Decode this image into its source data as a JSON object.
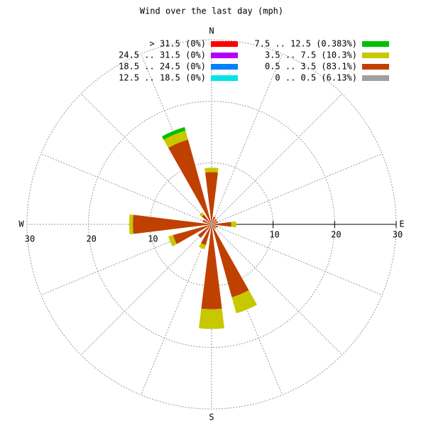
{
  "chart_data": {
    "type": "windrose",
    "title": "Wind over the last day (mph)",
    "categories": [
      "N",
      null,
      null,
      null,
      "E",
      null,
      null,
      null,
      "S",
      null,
      null,
      null,
      "W",
      null,
      null,
      null
    ],
    "rlim": [
      0,
      30
    ],
    "rticks": [
      10,
      20,
      30
    ],
    "series": [
      {
        "name": "0 .. 0.5 (6.13%)",
        "color": "#a0a0a0",
        "values": [
          0.3,
          0.3,
          0.3,
          0.3,
          0.3,
          0.3,
          0.3,
          0.3,
          0.3,
          0.3,
          0.3,
          0.3,
          0.3,
          0.3,
          0.3,
          0.3
        ]
      },
      {
        "name": "0.5 .. 3.5 (83.1%)",
        "color": "#c04000",
        "values": [
          8.2,
          1.0,
          0.8,
          0.8,
          2.9,
          0.8,
          0.6,
          12.0,
          13.5,
          3.2,
          2.5,
          6.2,
          12.5,
          1.2,
          1.7,
          14.0
        ]
      },
      {
        "name": "3.5 .. 7.5 (10.3%)",
        "color": "#c8c800",
        "values": [
          0.7,
          0,
          0,
          0,
          0.8,
          0,
          0,
          2.7,
          3.2,
          0.7,
          0,
          0.8,
          0.6,
          0,
          0.5,
          1.5
        ]
      },
      {
        "name": "7.5 .. 12.5 (0.383%)",
        "color": "#00c000",
        "values": [
          0,
          0,
          0,
          0,
          0,
          0,
          0,
          0,
          0,
          0,
          0,
          0,
          0,
          0,
          0,
          0.6
        ]
      },
      {
        "name": "12.5 .. 18.5 (0%)",
        "color": "#00e5e5",
        "values": [
          0,
          0,
          0,
          0,
          0,
          0,
          0,
          0,
          0,
          0,
          0,
          0,
          0,
          0,
          0,
          0
        ]
      },
      {
        "name": "18.5 .. 24.5 (0%)",
        "color": "#0080ff",
        "values": [
          0,
          0,
          0,
          0,
          0,
          0,
          0,
          0,
          0,
          0,
          0,
          0,
          0,
          0,
          0,
          0
        ]
      },
      {
        "name": "24.5 .. 31.5 (0%)",
        "color": "#b400ff",
        "values": [
          0,
          0,
          0,
          0,
          0,
          0,
          0,
          0,
          0,
          0,
          0,
          0,
          0,
          0,
          0,
          0
        ]
      },
      {
        "name": "> 31.5 (0%)",
        "color": "#ff0000",
        "values": [
          0,
          0,
          0,
          0,
          0,
          0,
          0,
          0,
          0,
          0,
          0,
          0,
          0,
          0,
          0,
          0
        ]
      }
    ]
  }
}
